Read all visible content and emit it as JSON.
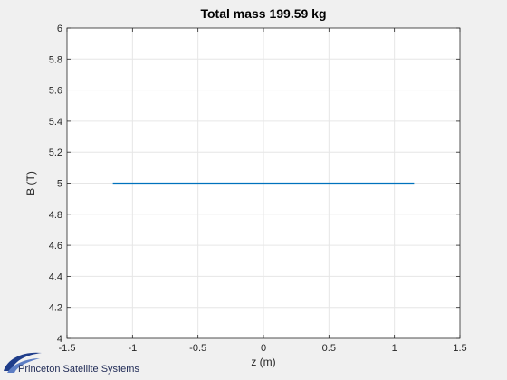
{
  "chart_data": {
    "type": "line",
    "title": "Total mass   199.59 kg",
    "xlabel": "z (m)",
    "ylabel": "B (T)",
    "xlim": [
      -1.5,
      1.5
    ],
    "ylim": [
      4,
      6
    ],
    "xticks": [
      -1.5,
      -1,
      -0.5,
      0,
      0.5,
      1,
      1.5
    ],
    "xtick_labels": [
      "-1.5",
      "-1",
      "-0.5",
      "0",
      "0.5",
      "1",
      "1.5"
    ],
    "yticks": [
      4,
      4.2,
      4.4,
      4.6,
      4.8,
      5,
      5.2,
      5.4,
      5.6,
      5.8,
      6
    ],
    "ytick_labels": [
      "4",
      "4.2",
      "4.4",
      "4.6",
      "4.8",
      "5",
      "5.2",
      "5.4",
      "5.6",
      "5.8",
      "6"
    ],
    "grid": true,
    "series": [
      {
        "x": [
          -1.15,
          1.15
        ],
        "y": [
          5,
          5
        ],
        "color": "#0072bd"
      }
    ]
  },
  "logo": {
    "text": "Princeton Satellite Systems",
    "icon": "swoosh-logo-icon",
    "color": "#1f3d8a"
  },
  "colors": {
    "background": "#f0f0f0",
    "plot_area": "#ffffff",
    "grid": "#e6e6e6",
    "axis": "#262626"
  }
}
